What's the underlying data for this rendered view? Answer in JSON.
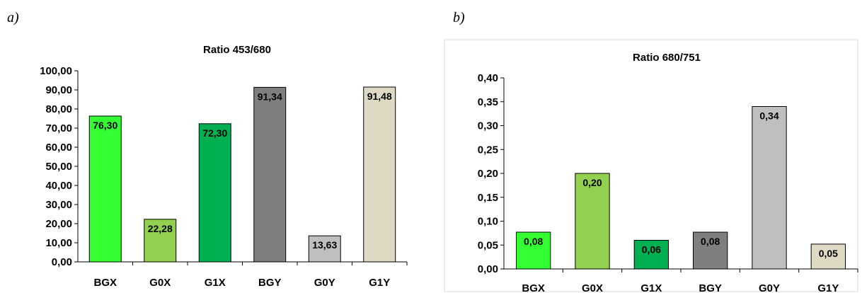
{
  "panels": {
    "a": "a)",
    "b": "b)"
  },
  "chart_data": [
    {
      "type": "bar",
      "title": "Ratio 453/680",
      "categories": [
        "BGX",
        "G0X",
        "G1X",
        "BGY",
        "G0Y",
        "G1Y"
      ],
      "values": [
        76.3,
        22.28,
        72.3,
        91.34,
        13.63,
        91.48
      ],
      "data_labels": [
        "76,30",
        "22,28",
        "72,30",
        "91,34",
        "13,63",
        "91,48"
      ],
      "ylim": [
        0,
        100
      ],
      "yticks": [
        "0,00",
        "10,00",
        "20,00",
        "30,00",
        "40,00",
        "50,00",
        "60,00",
        "70,00",
        "80,00",
        "90,00",
        "100,00"
      ],
      "colors": [
        "#33ff33",
        "#92d050",
        "#00b050",
        "#7f7f7f",
        "#bfbfbf",
        "#ddd9c3"
      ],
      "grid": false
    },
    {
      "type": "bar",
      "title": "Ratio 680/751",
      "categories": [
        "BGX",
        "G0X",
        "G1X",
        "BGY",
        "G0Y",
        "G1Y"
      ],
      "values": [
        0.077,
        0.2,
        0.06,
        0.077,
        0.34,
        0.052
      ],
      "data_labels": [
        "0,08",
        "0,20",
        "0,06",
        "0,08",
        "0,34",
        "0,05"
      ],
      "ylim": [
        0,
        0.4
      ],
      "yticks": [
        "0,00",
        "0,05",
        "0,10",
        "0,15",
        "0,20",
        "0,25",
        "0,30",
        "0,35",
        "0,40"
      ],
      "colors": [
        "#33ff33",
        "#92d050",
        "#00b050",
        "#7f7f7f",
        "#bfbfbf",
        "#ddd9c3"
      ],
      "grid": false,
      "frame": true
    }
  ]
}
